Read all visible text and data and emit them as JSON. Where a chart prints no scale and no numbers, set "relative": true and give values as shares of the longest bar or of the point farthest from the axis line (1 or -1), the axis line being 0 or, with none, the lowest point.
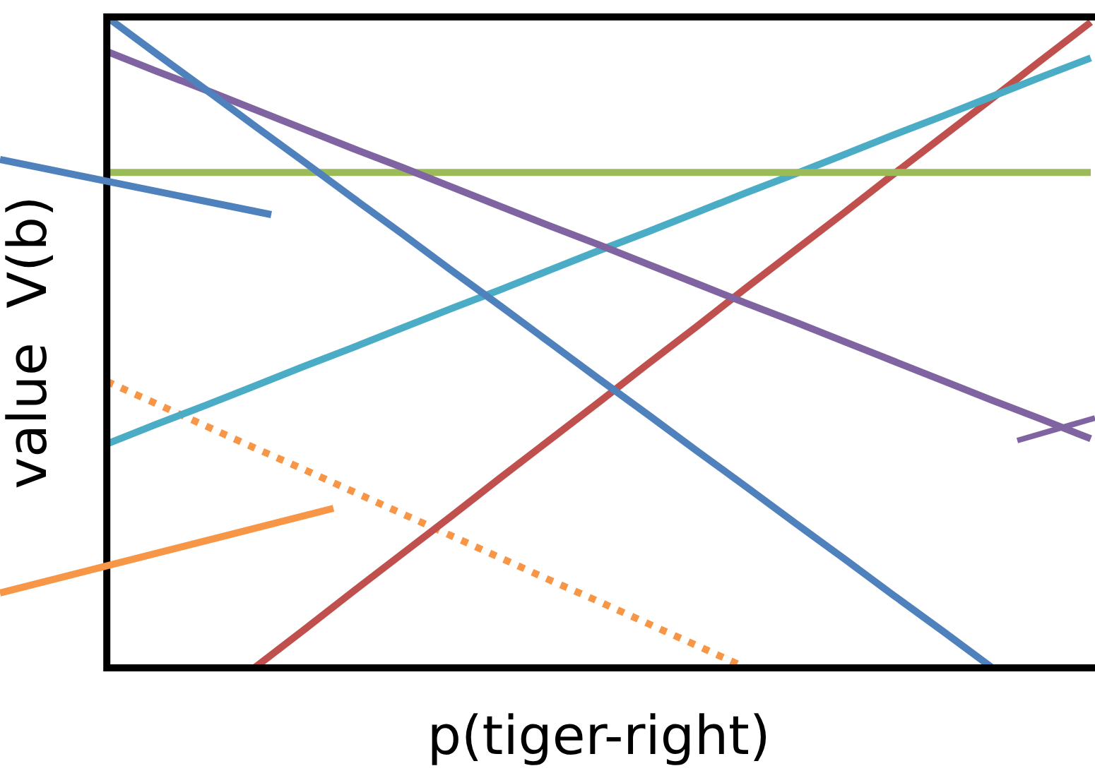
{
  "chart_data": {
    "type": "line",
    "xlabel": "p(tiger-right)",
    "ylabel": "value  V(b)",
    "relative": true,
    "marker": "none",
    "legend": false,
    "grid": false,
    "categories": [
      null,
      null,
      null,
      null,
      null,
      null,
      null,
      null,
      null,
      null,
      null,
      null,
      null,
      null,
      null,
      null,
      null,
      null,
      null,
      null,
      null
    ],
    "series": [
      {
        "color": "#4f81bd",
        "values": [
          1,
          0.944,
          0.889,
          0.833,
          0.778,
          0.722,
          0.667,
          0.611,
          0.556,
          0.5,
          0.444,
          0.389,
          0.333,
          0.278,
          0.222,
          0.167,
          0.111,
          0.056,
          0,
          null,
          null
        ]
      },
      {
        "color": "#8064a2",
        "values": [
          0.947,
          0.917,
          0.888,
          0.858,
          0.828,
          0.798,
          0.769,
          0.739,
          0.709,
          0.679,
          0.65,
          0.62,
          0.59,
          0.56,
          0.531,
          0.501,
          0.471,
          0.441,
          0.411,
          0.382,
          0.352
        ]
      },
      {
        "color": "#9bbb59",
        "values": [
          0.761,
          0.761,
          0.761,
          0.761,
          0.761,
          0.761,
          0.761,
          0.761,
          0.761,
          0.761,
          0.761,
          0.761,
          0.761,
          0.761,
          0.761,
          0.761,
          0.761,
          0.761,
          0.761,
          0.761,
          0.761
        ]
      },
      {
        "color": "#4bacc6",
        "values": [
          0.344,
          0.374,
          0.403,
          0.433,
          0.463,
          0.492,
          0.522,
          0.552,
          0.581,
          0.611,
          0.641,
          0.67,
          0.7,
          0.73,
          0.759,
          0.789,
          0.819,
          0.848,
          0.878,
          0.908,
          0.937
        ]
      },
      {
        "color": "#c0504d",
        "values": [
          null,
          null,
          null,
          0,
          0.058,
          0.117,
          0.175,
          0.233,
          0.292,
          0.35,
          0.408,
          0.467,
          0.525,
          0.584,
          0.642,
          0.7,
          0.759,
          0.817,
          0.875,
          0.934,
          0.992
        ]
      },
      {
        "color": "#f79646",
        "values": [
          0.44,
          0.406,
          0.372,
          0.338,
          0.305,
          0.271,
          0.237,
          0.203,
          0.169,
          0.135,
          0.102,
          0.068,
          0.034,
          0,
          null,
          null,
          null,
          null,
          null,
          null,
          null
        ],
        "line_style": "dotted"
      }
    ]
  }
}
